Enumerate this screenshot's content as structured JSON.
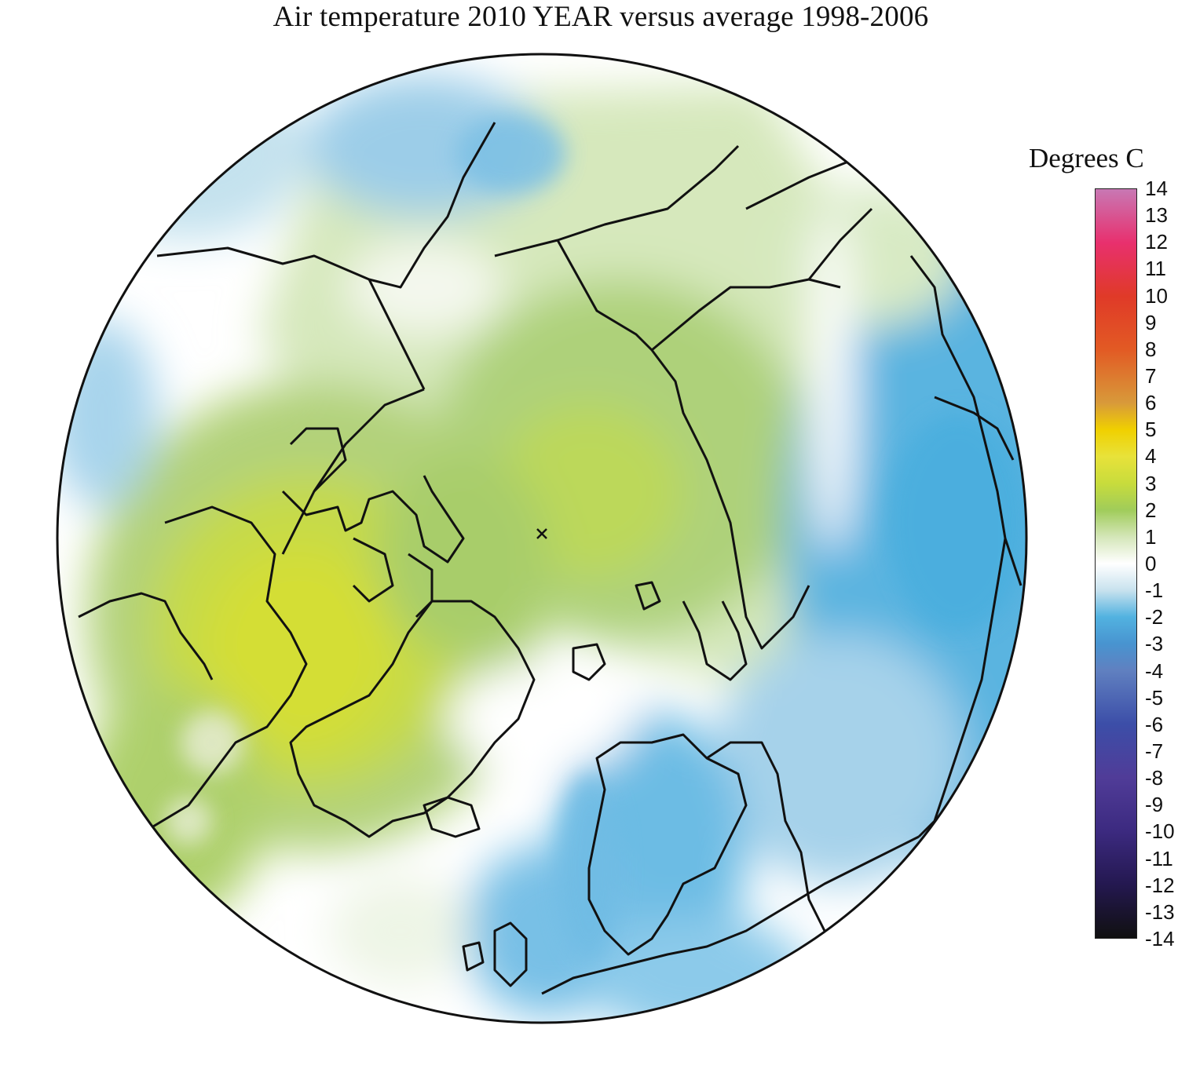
{
  "title": "Air temperature 2010 YEAR versus average 1998-2006",
  "legend": {
    "title": "Degrees C",
    "ticks": [
      14,
      13,
      12,
      11,
      10,
      9,
      8,
      7,
      6,
      5,
      4,
      3,
      2,
      1,
      0,
      -1,
      -2,
      -3,
      -4,
      -5,
      -6,
      -7,
      -8,
      -9,
      -10,
      -11,
      -12,
      -13,
      -14
    ],
    "tick_labels": [
      "14",
      "13",
      "12",
      "11",
      "10",
      "9",
      "8",
      "7",
      "6",
      "5",
      "4",
      "3",
      "2",
      "1",
      "0",
      "-1",
      "-2",
      "-3",
      "-4",
      "-5",
      "-6",
      "-7",
      "-8",
      "-9",
      "-10",
      "-11",
      "-12",
      "-13",
      "-14"
    ],
    "range": [
      -14,
      14
    ],
    "colors": {
      "14": "#c878b4",
      "12": "#e8306e",
      "10": "#e03a28",
      "8": "#e25a24",
      "6": "#d89a3a",
      "5": "#f0d000",
      "4": "#e8e23a",
      "3": "#c8dc3c",
      "2": "#a0cc5a",
      "1": "#d4e6b8",
      "0": "#ffffff",
      "-1": "#c8e2ee",
      "-2": "#52b2e0",
      "-3": "#4894d0",
      "-4": "#6080c0",
      "-6": "#3c4ea8",
      "-8": "#503c98",
      "-10": "#3c2a80",
      "-12": "#241850",
      "-14": "#101010"
    }
  },
  "map": {
    "projection": "north polar stereographic",
    "pole_marker": "x"
  }
}
